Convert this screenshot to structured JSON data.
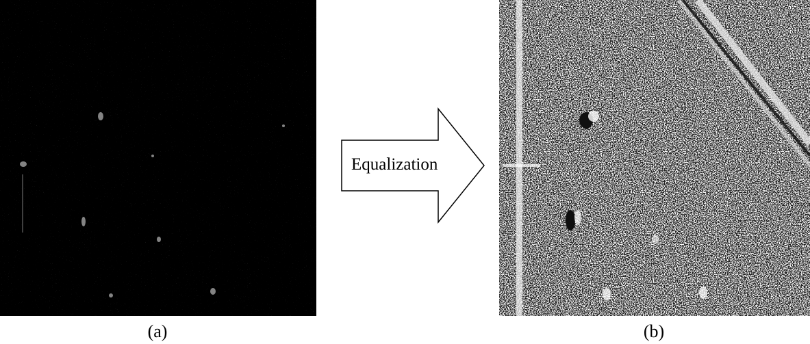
{
  "panels": [
    {
      "caption": "(a)",
      "description_name": "original-dark-image"
    },
    {
      "caption": "(b)",
      "description_name": "equalized-image"
    }
  ],
  "arrow": {
    "label": "Equalization"
  },
  "colors": {
    "panel_a_background": "#000000",
    "panel_b_noise": "#ffffff",
    "arrow_fill": "#ffffff",
    "arrow_stroke": "#000000",
    "text": "#000000"
  }
}
